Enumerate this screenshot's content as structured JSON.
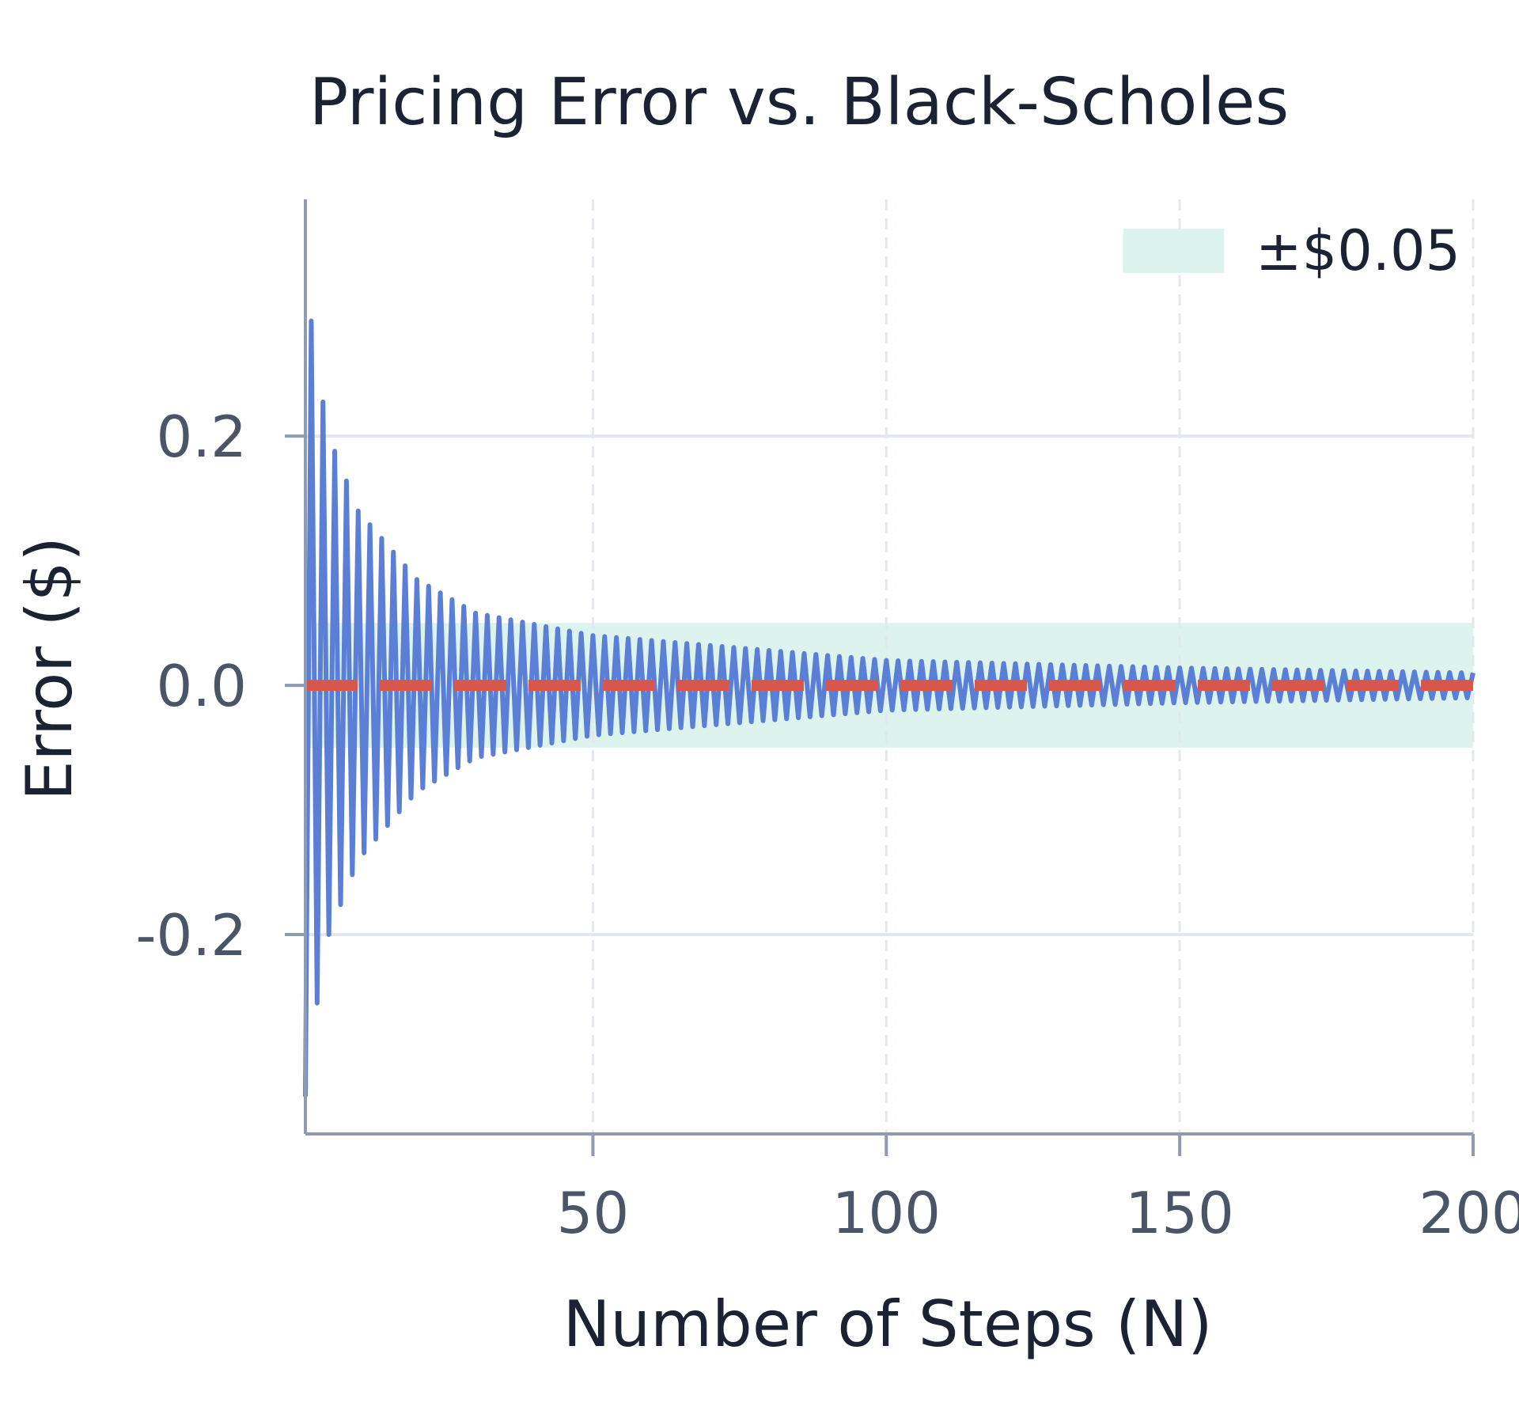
{
  "chart_data": {
    "type": "line",
    "title": "Pricing Error vs. Black-Scholes",
    "xlabel": "Number of Steps (N)",
    "ylabel": "Error ($)",
    "xlim": [
      1,
      200
    ],
    "ylim": [
      -0.36,
      0.39
    ],
    "x_ticks": [
      50,
      100,
      150,
      200
    ],
    "x_tick_labels": [
      "50",
      "100",
      "150",
      "200"
    ],
    "y_ticks": [
      -0.2,
      0.0,
      0.2
    ],
    "y_tick_labels": [
      "-0.2",
      "0.0",
      "0.2"
    ],
    "grid": true,
    "legend_position": "top-right",
    "band": {
      "label": "±$0.05",
      "lower": -0.05,
      "upper": 0.05,
      "color": "#ddf3ee"
    },
    "reference_line": {
      "y": 0.0,
      "style": "dashed",
      "color": "#d9574a"
    },
    "series": [
      {
        "color": "#5b7fd6",
        "x_start": 1,
        "x_end": 200,
        "alternating_sign": true,
        "envelope_points": [
          {
            "x": 1,
            "abs_error": 0.33
          },
          {
            "x": 3,
            "abs_error": 0.255
          },
          {
            "x": 5,
            "abs_error": 0.2
          },
          {
            "x": 10,
            "abs_error": 0.14
          },
          {
            "x": 20,
            "abs_error": 0.085
          },
          {
            "x": 30,
            "abs_error": 0.058
          },
          {
            "x": 50,
            "abs_error": 0.04
          },
          {
            "x": 100,
            "abs_error": 0.02
          },
          {
            "x": 150,
            "abs_error": 0.014
          },
          {
            "x": 200,
            "abs_error": 0.01
          }
        ]
      }
    ]
  },
  "colors": {
    "axis": "#8e9bb0",
    "grid": "#e3e8ee",
    "series": "#5b7fd6",
    "reference": "#d9574a",
    "band": "#ddf3ee"
  }
}
